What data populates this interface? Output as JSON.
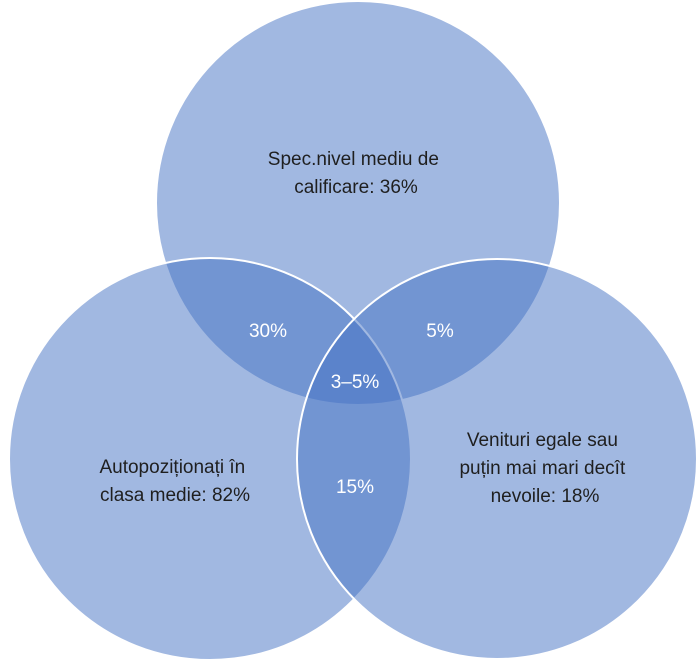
{
  "sets": [
    {
      "label": [
        "Spec.nivel mediu de",
        "calificare: 36%"
      ]
    },
    {
      "label": [
        "Autopoziționați în",
        "clasa medie: 82%"
      ]
    },
    {
      "label": [
        "Venituri egale sau",
        "puțin mai mari decît",
        "nevoile: 18%"
      ]
    }
  ],
  "intersections": [
    {
      "label": "30%"
    },
    {
      "label": "5%"
    },
    {
      "label": "15%"
    },
    {
      "label": "3–5%"
    }
  ]
}
